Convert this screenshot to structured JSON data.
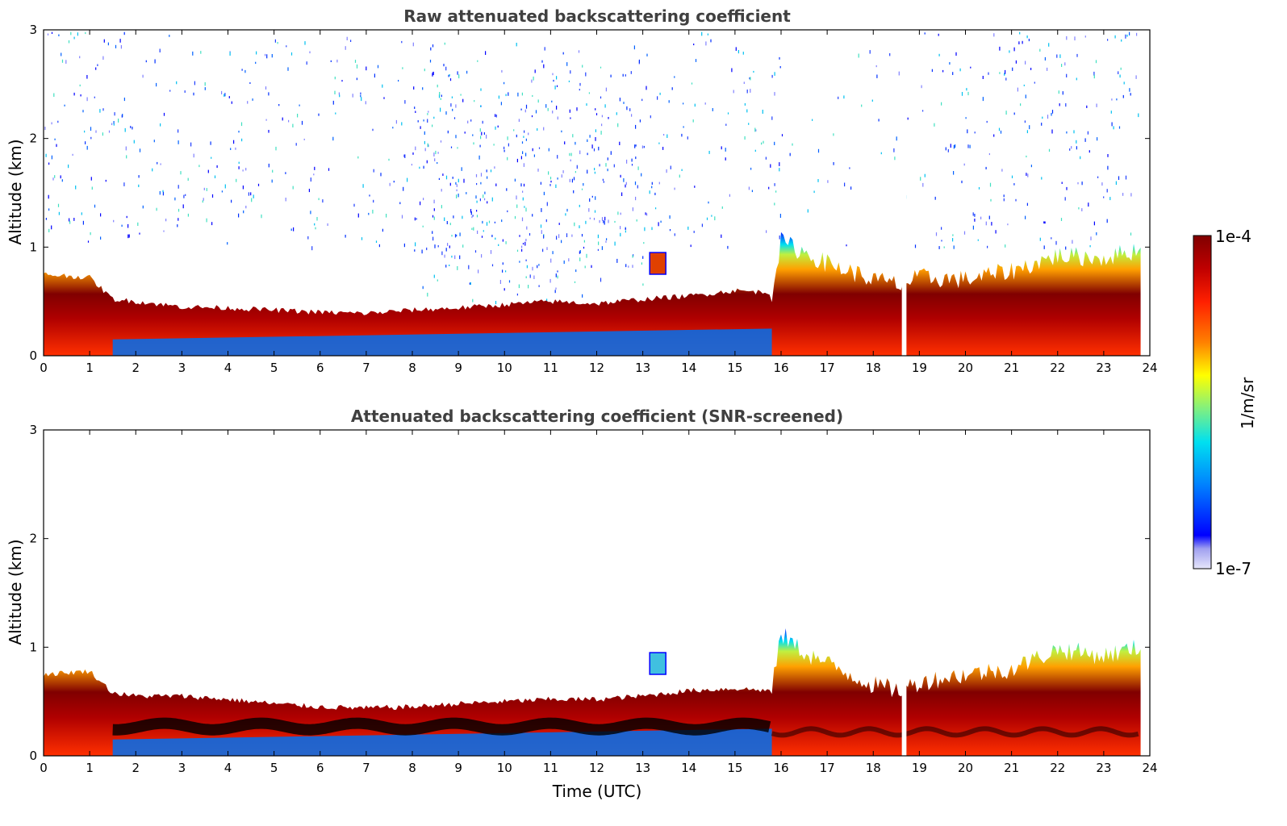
{
  "chart_data": [
    {
      "type": "heatmap",
      "title": "Raw attenuated backscattering coefficient",
      "xlabel": "",
      "ylabel": "Altitude (km)",
      "xlim": [
        0,
        24
      ],
      "ylim": [
        0,
        3
      ],
      "xticks": [
        0,
        1,
        2,
        3,
        4,
        5,
        6,
        7,
        8,
        9,
        10,
        11,
        12,
        13,
        14,
        15,
        16,
        17,
        18,
        19,
        20,
        21,
        22,
        23,
        24
      ],
      "yticks": [
        0,
        1,
        2,
        3
      ],
      "xtick_labels": [
        "0",
        "1",
        "2",
        "3",
        "4",
        "5",
        "6",
        "7",
        "8",
        "9",
        "10",
        "11",
        "12",
        "13",
        "14",
        "15",
        "16",
        "17",
        "18",
        "19",
        "20",
        "21",
        "22",
        "23",
        "24"
      ],
      "ytick_labels": [
        "0",
        "1",
        "2",
        "3"
      ],
      "data_end_hour": 23.8,
      "layer_top_km": [
        [
          0.0,
          0.75
        ],
        [
          1.0,
          0.72
        ],
        [
          1.5,
          0.52
        ],
        [
          2.0,
          0.5
        ],
        [
          3.0,
          0.45
        ],
        [
          4.0,
          0.44
        ],
        [
          5.0,
          0.42
        ],
        [
          6.0,
          0.4
        ],
        [
          7.0,
          0.39
        ],
        [
          8.0,
          0.42
        ],
        [
          9.0,
          0.44
        ],
        [
          10.0,
          0.47
        ],
        [
          11.0,
          0.5
        ],
        [
          12.0,
          0.48
        ],
        [
          13.0,
          0.52
        ],
        [
          14.0,
          0.55
        ],
        [
          15.0,
          0.6
        ],
        [
          15.8,
          0.58
        ],
        [
          16.0,
          1.05
        ],
        [
          16.5,
          0.95
        ],
        [
          17.0,
          0.85
        ],
        [
          18.0,
          0.7
        ],
        [
          18.6,
          0.65
        ],
        [
          19.0,
          0.72
        ],
        [
          20.0,
          0.7
        ],
        [
          21.0,
          0.78
        ],
        [
          22.0,
          0.92
        ],
        [
          23.0,
          0.9
        ],
        [
          23.8,
          0.98
        ]
      ],
      "cloud_patch": {
        "x_start": 13.15,
        "x_end": 13.5,
        "y_bottom_km": 0.75,
        "y_top_km": 0.95
      },
      "noise": "scattered high-altitude signal up to 3 km",
      "gap_hours": [
        [
          18.62,
          18.72
        ]
      ]
    },
    {
      "type": "heatmap",
      "title": "Attenuated backscattering coefficient (SNR-screened)",
      "xlabel": "Time (UTC)",
      "ylabel": "Altitude (km)",
      "xlim": [
        0,
        24
      ],
      "ylim": [
        0,
        3
      ],
      "xticks": [
        0,
        1,
        2,
        3,
        4,
        5,
        6,
        7,
        8,
        9,
        10,
        11,
        12,
        13,
        14,
        15,
        16,
        17,
        18,
        19,
        20,
        21,
        22,
        23,
        24
      ],
      "yticks": [
        0,
        1,
        2,
        3
      ],
      "xtick_labels": [
        "0",
        "1",
        "2",
        "3",
        "4",
        "5",
        "6",
        "7",
        "8",
        "9",
        "10",
        "11",
        "12",
        "13",
        "14",
        "15",
        "16",
        "17",
        "18",
        "19",
        "20",
        "21",
        "22",
        "23",
        "24"
      ],
      "ytick_labels": [
        "0",
        "1",
        "2",
        "3"
      ],
      "data_end_hour": 23.8,
      "layer_top_km": [
        [
          0.0,
          0.75
        ],
        [
          1.0,
          0.78
        ],
        [
          1.5,
          0.58
        ],
        [
          2.0,
          0.55
        ],
        [
          3.0,
          0.55
        ],
        [
          4.0,
          0.52
        ],
        [
          5.0,
          0.48
        ],
        [
          6.0,
          0.45
        ],
        [
          7.0,
          0.44
        ],
        [
          8.0,
          0.45
        ],
        [
          9.0,
          0.48
        ],
        [
          10.0,
          0.5
        ],
        [
          11.0,
          0.52
        ],
        [
          12.0,
          0.52
        ],
        [
          13.0,
          0.55
        ],
        [
          14.0,
          0.6
        ],
        [
          15.0,
          0.62
        ],
        [
          15.8,
          0.6
        ],
        [
          16.0,
          1.12
        ],
        [
          16.5,
          0.95
        ],
        [
          17.0,
          0.85
        ],
        [
          18.0,
          0.65
        ],
        [
          18.6,
          0.6
        ],
        [
          19.0,
          0.68
        ],
        [
          20.0,
          0.75
        ],
        [
          21.0,
          0.8
        ],
        [
          22.0,
          0.98
        ],
        [
          23.0,
          0.92
        ],
        [
          23.8,
          1.0
        ]
      ],
      "cloud_patch": {
        "x_start": 13.15,
        "x_end": 13.5,
        "y_bottom_km": 0.75,
        "y_top_km": 0.95
      },
      "noise": "none (screened)",
      "gap_hours": [
        [
          18.62,
          18.72
        ]
      ]
    }
  ],
  "colorbar": {
    "top_label": "1e-4",
    "bottom_label": "1e-7",
    "unit_label": "1/m/sr",
    "colors": [
      "#e6e6fa",
      "#c8c8f5",
      "#a0a0f0",
      "#6464ff",
      "#0000ff",
      "#0040ff",
      "#0080ff",
      "#00b0ff",
      "#00e0f0",
      "#40f0c0",
      "#80f080",
      "#c0f040",
      "#ffff00",
      "#ffc000",
      "#ff8000",
      "#ff4000",
      "#e00000",
      "#b00000",
      "#800000"
    ]
  }
}
